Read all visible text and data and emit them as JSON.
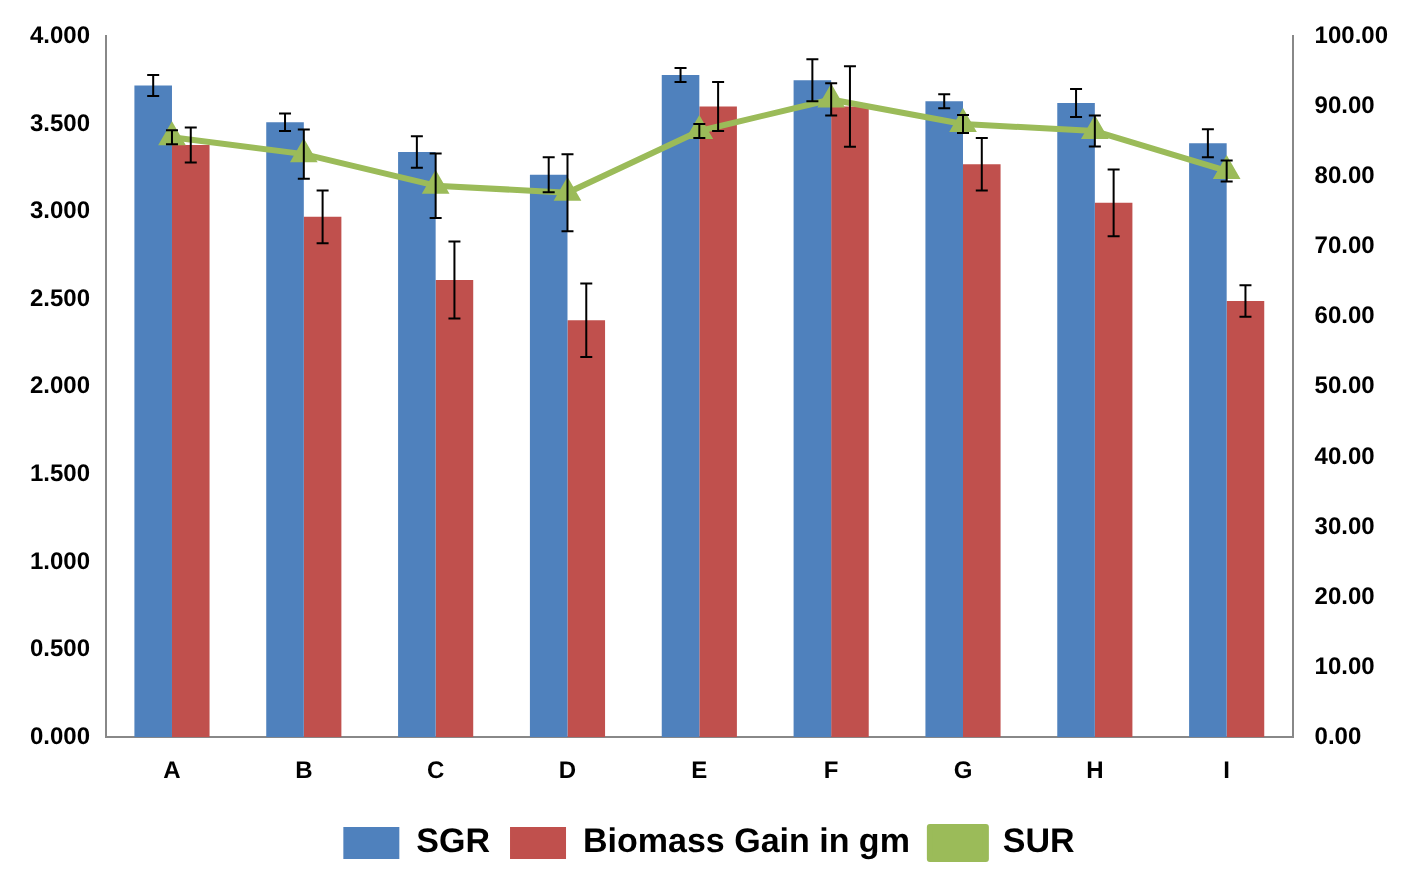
{
  "chart_data": {
    "type": "bar",
    "categories": [
      "A",
      "B",
      "C",
      "D",
      "E",
      "F",
      "G",
      "H",
      "I"
    ],
    "series": [
      {
        "name": "SGR",
        "color": "#4f81bd",
        "values": [
          3.72,
          3.51,
          3.34,
          3.21,
          3.78,
          3.75,
          3.63,
          3.62,
          3.39
        ],
        "errors": [
          0.06,
          0.05,
          0.09,
          0.1,
          0.04,
          0.12,
          0.04,
          0.08,
          0.08
        ]
      },
      {
        "name": "Biomass Gain in gm",
        "color": "#c0504d",
        "values": [
          3.38,
          2.97,
          2.61,
          2.38,
          3.6,
          3.6,
          3.27,
          3.05,
          2.49
        ],
        "errors": [
          0.1,
          0.15,
          0.22,
          0.21,
          0.14,
          0.23,
          0.15,
          0.19,
          0.09
        ]
      },
      {
        "name": "SUR",
        "type": "line",
        "axis": "y2",
        "color": "#9bbb59",
        "marker": "triangle",
        "values": [
          85.6,
          83.2,
          78.7,
          77.7,
          86.5,
          91.0,
          87.5,
          86.5,
          80.8
        ],
        "errors": [
          1.0,
          3.5,
          4.6,
          5.5,
          1.0,
          2.3,
          1.3,
          2.2,
          1.5
        ]
      }
    ],
    "ylim": [
      0,
      4
    ],
    "yticks": [
      {
        "value": 0,
        "label": "0.000"
      },
      {
        "value": 0.5,
        "label": "0.500"
      },
      {
        "value": 1,
        "label": "1.000"
      },
      {
        "value": 1.5,
        "label": "1.500"
      },
      {
        "value": 2,
        "label": "2.000"
      },
      {
        "value": 2.5,
        "label": "2.500"
      },
      {
        "value": 3,
        "label": "3.000"
      },
      {
        "value": 3.5,
        "label": "3.500"
      },
      {
        "value": 4,
        "label": "4.000"
      }
    ],
    "y2lim": [
      0,
      100
    ],
    "y2ticks": [
      {
        "value": 0,
        "label": "0.00"
      },
      {
        "value": 10,
        "label": "10.00"
      },
      {
        "value": 20,
        "label": "20.00"
      },
      {
        "value": 30,
        "label": "30.00"
      },
      {
        "value": 40,
        "label": "40.00"
      },
      {
        "value": 50,
        "label": "50.00"
      },
      {
        "value": 60,
        "label": "60.00"
      },
      {
        "value": 70,
        "label": "70.00"
      },
      {
        "value": 80,
        "label": "80.00"
      },
      {
        "value": 90,
        "label": "90.00"
      },
      {
        "value": 100,
        "label": "100.00"
      }
    ],
    "grid": false,
    "legend": "bottom"
  }
}
